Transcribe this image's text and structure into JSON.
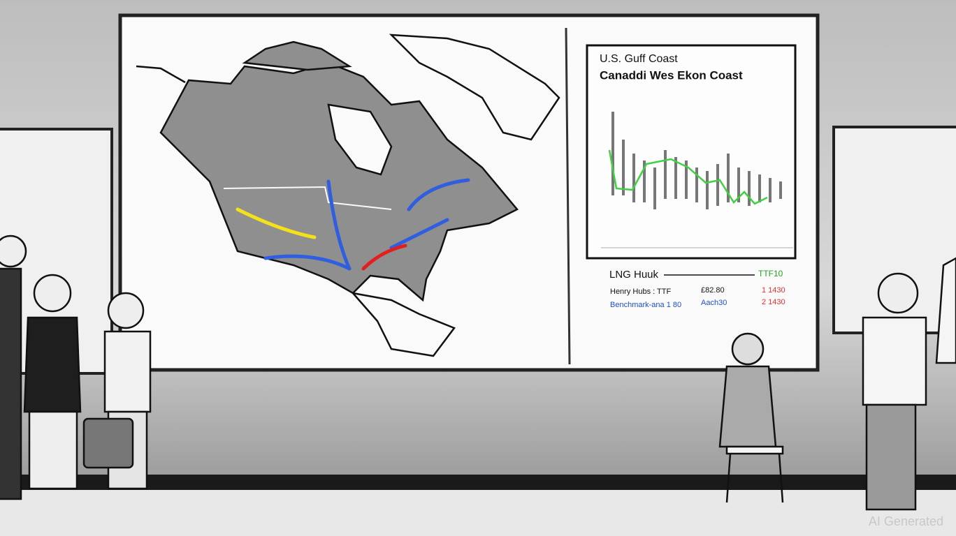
{
  "panel": {
    "title": "U.S. Guff Coast",
    "subtitle": "Canaddi Wes Ekon Coast"
  },
  "table": {
    "header": [
      "LNG Huuk",
      "TTF10"
    ],
    "rows": [
      [
        "Henry Hubs : TTF",
        "£82.80",
        "1 1430"
      ],
      [
        "Benchmark-ana 1 80",
        "Aach30",
        "2 1430"
      ]
    ]
  },
  "watermark": "AI Generated"
}
